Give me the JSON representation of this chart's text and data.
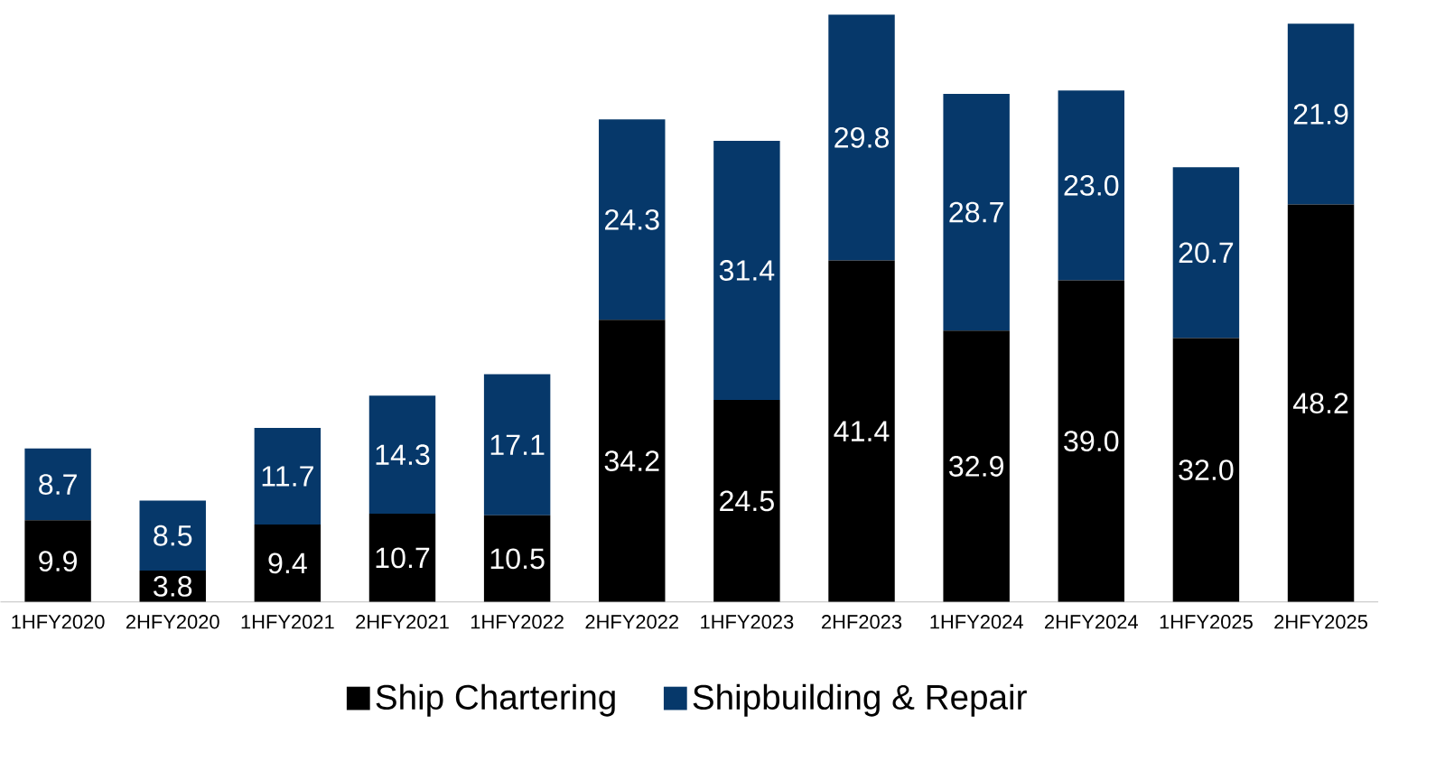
{
  "chart_data": {
    "type": "bar",
    "stacked": true,
    "legend": "bottom",
    "categories": [
      "1HFY2020",
      "2HFY2020",
      "1HFY2021",
      "2HFY2021",
      "1HFY2022",
      "2HFY2022",
      "1HFY2023",
      "2HF2023",
      "1HFY2024",
      "2HFY2024",
      "1HFY2025",
      "2HFY2025"
    ],
    "series": [
      {
        "name": "Ship Chartering",
        "color": "#000000",
        "values": [
          9.9,
          3.8,
          9.4,
          10.7,
          10.5,
          34.2,
          24.5,
          41.4,
          32.9,
          39.0,
          32.0,
          48.2
        ],
        "value_labels": [
          "9.9",
          "3.8",
          "9.4",
          "10.7",
          "10.5",
          "34.2",
          "24.5",
          "41.4",
          "32.9",
          "39.0",
          "32.0",
          "48.2"
        ]
      },
      {
        "name": "Shipbuilding & Repair",
        "color": "#06386a",
        "values": [
          8.7,
          8.5,
          11.7,
          14.3,
          17.1,
          24.3,
          31.4,
          29.8,
          28.7,
          23.0,
          20.7,
          21.9
        ],
        "value_labels": [
          "8.7",
          "8.5",
          "11.7",
          "14.3",
          "17.1",
          "24.3",
          "31.4",
          "29.8",
          "28.7",
          "23.0",
          "20.7",
          "21.9"
        ]
      }
    ]
  }
}
